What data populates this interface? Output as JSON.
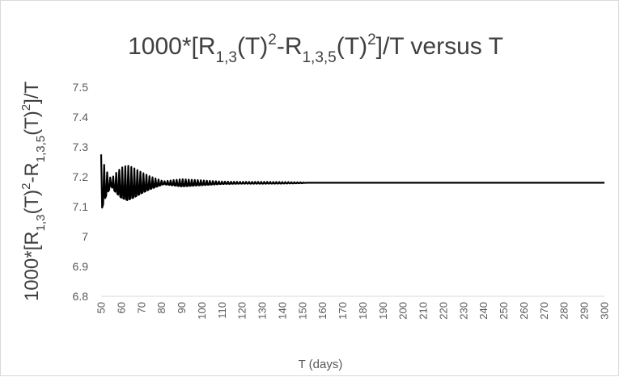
{
  "chart_data": {
    "type": "line",
    "title": {
      "prefix": "1000*[R",
      "sub1": "1,3",
      "mid1": "(T)",
      "sup1": "2",
      "mid2": "-R",
      "sub2": "1,3,5",
      "mid3": "(T)",
      "sup2": "2",
      "suffix": "]/T versus T"
    },
    "ylabel": {
      "prefix": "1000*[R",
      "sub1": "1,3",
      "mid1": "(T)",
      "sup1": "2",
      "mid2": "-R",
      "sub2": "1,3,5",
      "mid3": "(T)",
      "sup2": "2",
      "suffix": "]/T"
    },
    "xlabel": "T (days)",
    "xlim": [
      50,
      300
    ],
    "ylim": [
      6.8,
      7.5
    ],
    "x_ticks": [
      "50",
      "60",
      "70",
      "80",
      "90",
      "100",
      "110",
      "120",
      "130",
      "140",
      "150",
      "160",
      "170",
      "180",
      "190",
      "200",
      "210",
      "220",
      "230",
      "240",
      "250",
      "260",
      "270",
      "280",
      "290",
      "300"
    ],
    "y_ticks": [
      "7.5",
      "7.4",
      "7.3",
      "7.2",
      "7.1",
      "7",
      "6.9",
      "6.8"
    ],
    "grid": "off",
    "legend": "none",
    "series": [
      {
        "color": "#000000",
        "x_start": 50,
        "x_end": 300,
        "x_step": 0.5,
        "baseline": 7.18,
        "envelope": [
          [
            50,
            0.095
          ],
          [
            51.5,
            0.06
          ],
          [
            53,
            0.035
          ],
          [
            55,
            0.012
          ],
          [
            57,
            0.03
          ],
          [
            60,
            0.05
          ],
          [
            63,
            0.058
          ],
          [
            66,
            0.05
          ],
          [
            70,
            0.035
          ],
          [
            74,
            0.022
          ],
          [
            78,
            0.012
          ],
          [
            81,
            0.005
          ],
          [
            85,
            0.008
          ],
          [
            90,
            0.012
          ],
          [
            95,
            0.01
          ],
          [
            100,
            0.008
          ],
          [
            105,
            0.006
          ],
          [
            110,
            0.004
          ],
          [
            120,
            0.003
          ],
          [
            130,
            0.003
          ],
          [
            140,
            0.0025
          ],
          [
            150,
            0.0015
          ],
          [
            152,
            0.0
          ],
          [
            300,
            0.0
          ]
        ],
        "oscillation_period_days": 1.5
      }
    ]
  }
}
